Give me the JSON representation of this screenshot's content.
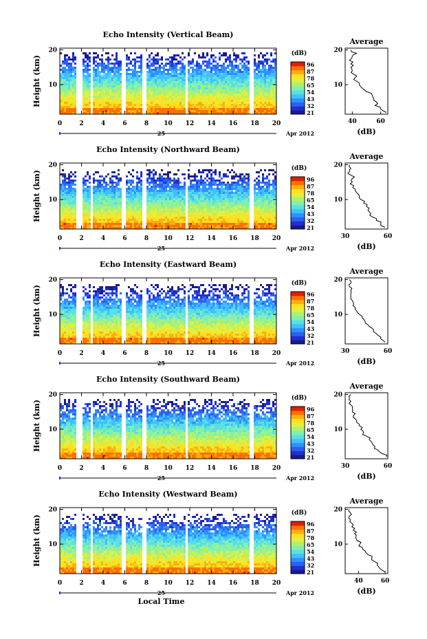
{
  "chart_data": [
    {
      "type": "heatmap",
      "title": "Echo Intensity (Vertical Beam)",
      "ylabel": "Height (km)",
      "xlabel": "",
      "x_ticks": [
        "0",
        "2",
        "4",
        "6",
        "8",
        "10",
        "12",
        "14",
        "16",
        "18",
        "20"
      ],
      "y_ticks": [
        "10",
        "20"
      ],
      "xlim": [
        0,
        20
      ],
      "ylim": [
        1.5,
        20.5
      ],
      "date_day": "25",
      "date_month": "Apr 2012",
      "data_gaps_hours": [
        [
          1.6,
          2.0
        ],
        [
          2.8,
          3.1
        ],
        [
          5.7,
          6.0
        ],
        [
          7.7,
          8.0
        ],
        [
          11.6,
          11.9
        ],
        [
          17.6,
          17.9
        ]
      ],
      "colorbar": {
        "unit": "(dB)",
        "ticks": [
          "96",
          "87",
          "78",
          "65",
          "54",
          "43",
          "32",
          "21"
        ],
        "range": [
          21,
          96
        ]
      },
      "echo_top_km": 19.5,
      "average_profile": {
        "title": "Average",
        "xlabel": "(dB)",
        "x_ticks": [
          "40",
          "60"
        ],
        "y_ticks": [
          "10",
          "20"
        ],
        "xlim": [
          35,
          65
        ],
        "heights_km": [
          2,
          3,
          4,
          5,
          6,
          7,
          8,
          9,
          10,
          11,
          12,
          13,
          14,
          15,
          16,
          17,
          18,
          19,
          20
        ],
        "values_db": [
          64,
          60,
          56,
          57,
          55,
          54,
          50,
          47,
          45,
          43,
          42,
          41,
          40,
          39,
          39,
          38,
          40,
          43,
          39
        ]
      }
    },
    {
      "type": "heatmap",
      "title": "Echo Intensity (Northward Beam)",
      "ylabel": "Height (km)",
      "xlabel": "",
      "x_ticks": [
        "0",
        "2",
        "4",
        "6",
        "8",
        "10",
        "12",
        "14",
        "16",
        "18",
        "20"
      ],
      "y_ticks": [
        "10",
        "20"
      ],
      "xlim": [
        0,
        20
      ],
      "ylim": [
        1.5,
        20.5
      ],
      "date_day": "25",
      "date_month": "Apr 2012",
      "data_gaps_hours": [
        [
          1.6,
          2.0
        ],
        [
          2.8,
          3.1
        ],
        [
          5.7,
          6.0
        ],
        [
          7.7,
          8.0
        ],
        [
          11.6,
          11.9
        ],
        [
          17.6,
          17.9
        ]
      ],
      "colorbar": {
        "unit": "(dB)",
        "ticks": [
          "96",
          "87",
          "78",
          "65",
          "54",
          "43",
          "32",
          "21"
        ],
        "range": [
          21,
          96
        ]
      },
      "echo_top_km": 18.5,
      "average_profile": {
        "title": "Average",
        "xlabel": "(dB)",
        "x_ticks": [
          "30",
          "60"
        ],
        "y_ticks": [
          "10",
          "20"
        ],
        "xlim": [
          30,
          60
        ],
        "heights_km": [
          2,
          3,
          4,
          5,
          6,
          7,
          8,
          9,
          10,
          11,
          12,
          13,
          14,
          15,
          16,
          17,
          18,
          19,
          20
        ],
        "values_db": [
          58,
          55,
          52,
          49,
          48,
          46,
          45,
          43,
          41,
          40,
          38,
          37,
          36,
          35,
          35,
          34,
          33,
          34,
          33
        ]
      }
    },
    {
      "type": "heatmap",
      "title": "Echo Intensity (Eastward Beam)",
      "ylabel": "Height (km)",
      "xlabel": "",
      "x_ticks": [
        "0",
        "2",
        "4",
        "6",
        "8",
        "10",
        "12",
        "14",
        "16",
        "18",
        "20"
      ],
      "y_ticks": [
        "10",
        "20"
      ],
      "xlim": [
        0,
        20
      ],
      "ylim": [
        1.5,
        20.5
      ],
      "date_day": "25",
      "date_month": "Apr 2012",
      "data_gaps_hours": [
        [
          1.6,
          2.0
        ],
        [
          2.8,
          3.1
        ],
        [
          5.7,
          6.0
        ],
        [
          7.7,
          8.0
        ],
        [
          11.6,
          11.9
        ],
        [
          17.6,
          17.9
        ]
      ],
      "colorbar": {
        "unit": "(dB)",
        "ticks": [
          "96",
          "87",
          "78",
          "65",
          "54",
          "43",
          "32",
          "21"
        ],
        "range": [
          21,
          96
        ]
      },
      "echo_top_km": 18.5,
      "average_profile": {
        "title": "Average",
        "xlabel": "(dB)",
        "x_ticks": [
          "30",
          "60"
        ],
        "y_ticks": [
          "10",
          "20"
        ],
        "xlim": [
          30,
          60
        ],
        "heights_km": [
          2,
          3,
          4,
          5,
          6,
          7,
          8,
          9,
          10,
          11,
          12,
          13,
          14,
          15,
          16,
          17,
          18,
          19,
          20
        ],
        "values_db": [
          58,
          55,
          53,
          50,
          49,
          46,
          44,
          42,
          40,
          38,
          37,
          36,
          35,
          34,
          34,
          34,
          33,
          34,
          33
        ]
      }
    },
    {
      "type": "heatmap",
      "title": "Echo Intensity (Southward Beam)",
      "ylabel": "Height (km)",
      "xlabel": "",
      "x_ticks": [
        "0",
        "2",
        "4",
        "6",
        "8",
        "10",
        "12",
        "14",
        "16",
        "18",
        "20"
      ],
      "y_ticks": [
        "10",
        "20"
      ],
      "xlim": [
        0,
        20
      ],
      "ylim": [
        1.5,
        20.5
      ],
      "date_day": "25",
      "date_month": "Apr 2012",
      "data_gaps_hours": [
        [
          1.6,
          2.0
        ],
        [
          2.8,
          3.1
        ],
        [
          5.7,
          6.0
        ],
        [
          7.7,
          8.0
        ],
        [
          11.6,
          11.9
        ],
        [
          17.6,
          17.9
        ]
      ],
      "colorbar": {
        "unit": "(dB)",
        "ticks": [
          "96",
          "87",
          "78",
          "65",
          "54",
          "43",
          "32",
          "21"
        ],
        "range": [
          21,
          96
        ]
      },
      "echo_top_km": 19.0,
      "average_profile": {
        "title": "Average",
        "xlabel": "(dB)",
        "x_ticks": [
          "30",
          "60"
        ],
        "y_ticks": [
          "10",
          "20"
        ],
        "xlim": [
          30,
          60
        ],
        "heights_km": [
          2,
          3,
          4,
          5,
          6,
          7,
          8,
          9,
          10,
          11,
          12,
          13,
          14,
          15,
          16,
          17,
          18,
          19,
          20
        ],
        "values_db": [
          59,
          56,
          53,
          51,
          49,
          47,
          45,
          43,
          41,
          40,
          38,
          37,
          36,
          35,
          35,
          34,
          34,
          33,
          34
        ]
      }
    },
    {
      "type": "heatmap",
      "title": "Echo Intensity (Westward Beam)",
      "ylabel": "Height (km)",
      "xlabel": "Local Time",
      "x_ticks": [
        "0",
        "2",
        "4",
        "6",
        "8",
        "10",
        "12",
        "14",
        "16",
        "18",
        "20"
      ],
      "y_ticks": [
        "10",
        "20"
      ],
      "xlim": [
        0,
        20
      ],
      "ylim": [
        1.5,
        20.5
      ],
      "date_day": "25",
      "date_month": "Apr 2012",
      "data_gaps_hours": [
        [
          1.6,
          2.0
        ],
        [
          2.8,
          3.1
        ],
        [
          5.7,
          6.0
        ],
        [
          7.7,
          8.0
        ],
        [
          11.6,
          11.9
        ],
        [
          17.6,
          17.9
        ]
      ],
      "colorbar": {
        "unit": "(dB)",
        "ticks": [
          "96",
          "87",
          "78",
          "65",
          "54",
          "43",
          "32",
          "21"
        ],
        "range": [
          21,
          96
        ]
      },
      "echo_top_km": 19.0,
      "average_profile": {
        "title": "Average",
        "xlabel": "(dB)",
        "x_ticks": [
          "40",
          "60"
        ],
        "y_ticks": [
          "10",
          "20"
        ],
        "xlim": [
          30,
          62
        ],
        "heights_km": [
          2,
          3,
          4,
          5,
          6,
          7,
          8,
          9,
          10,
          11,
          12,
          13,
          14,
          15,
          16,
          17,
          18,
          19,
          20
        ],
        "values_db": [
          60,
          56,
          54,
          52,
          50,
          47,
          45,
          43,
          41,
          39,
          38,
          37,
          36,
          35,
          35,
          34,
          33,
          34,
          33
        ]
      }
    }
  ],
  "colormap": [
    "#1a1a8c",
    "#2030d0",
    "#2c60f0",
    "#3090ff",
    "#40c0ff",
    "#5ae0e0",
    "#80f0b0",
    "#b0f070",
    "#e0f040",
    "#ffe020",
    "#ffb010",
    "#ff7000",
    "#e02000"
  ]
}
